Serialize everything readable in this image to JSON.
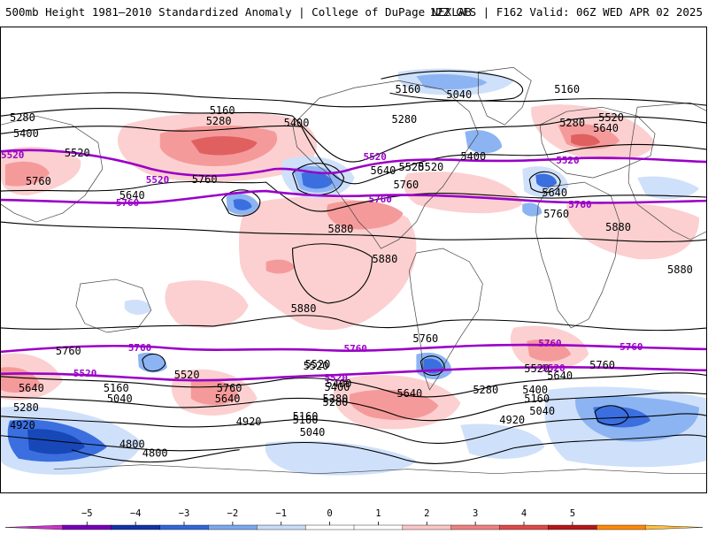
{
  "header": {
    "title": "500mb Height 1981–2010 Standardized Anomaly | College of DuPage NEXLAB",
    "run_info": "12Z GFS | F162 Valid: 06Z WED APR 02 2025"
  },
  "colorbar": {
    "ticks": [
      "−5",
      "−4",
      "−3",
      "−2",
      "−1",
      "0",
      "1",
      "2",
      "3",
      "4",
      "5"
    ],
    "colors": [
      "#cc33cc",
      "#7700bb",
      "#1133aa",
      "#3366dd",
      "#7aa8f0",
      "#c8dcf8",
      "#ffffff",
      "#ffffff",
      "#fcc6c6",
      "#f08080",
      "#e04848",
      "#b81818",
      "#ff8800",
      "#ffc040"
    ]
  },
  "map": {
    "shading_colors": {
      "pos1": "#fcd0d0",
      "pos2": "#f59a9a",
      "pos3": "#e06060",
      "neg1": "#cfe0fa",
      "neg2": "#8cb4f2",
      "neg3": "#3b6fe0",
      "neg4": "#1848b8"
    },
    "contour_color": "#000000",
    "highlight_color": "#9a00c8",
    "contour_labels": [
      "5280",
      "5160",
      "5280",
      "5400",
      "5520",
      "5760",
      "5640",
      "5760",
      "5160",
      "5280",
      "5400",
      "5040",
      "5160",
      "5280",
      "5520",
      "5640",
      "5640",
      "5400",
      "5520",
      "5520",
      "5760",
      "5880",
      "5880",
      "5880",
      "5880",
      "5880",
      "5760",
      "5760",
      "5520",
      "5760",
      "5640",
      "5280",
      "5160",
      "5040",
      "5160",
      "5280",
      "5400",
      "5520",
      "5520",
      "5400",
      "5280",
      "5160",
      "5040",
      "4920",
      "4920",
      "4800",
      "4800",
      "5640",
      "5760",
      "5640",
      "5520",
      "5400",
      "5280",
      "5160",
      "5040",
      "4920",
      "5640",
      "5760",
      "5640"
    ],
    "highlight_labels": [
      "5520",
      "5760",
      "5520",
      "5760",
      "5520",
      "5760",
      "5520",
      "5760",
      "5760",
      "5520",
      "5760",
      "5520",
      "5760",
      "5520"
    ]
  }
}
